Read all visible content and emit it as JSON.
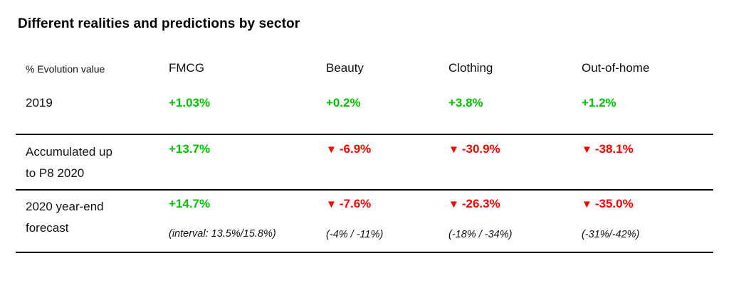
{
  "title": "Different realities and predictions by sector",
  "colors": {
    "positive": "#00C500",
    "negative": "#FF0000",
    "text": "#000000",
    "divider": "#000000"
  },
  "icons": {
    "down_marker": "down-triangle-icon"
  },
  "table": {
    "corner_label": "% Evolution value",
    "columns": [
      "FMCG",
      "Beauty",
      "Clothing",
      "Out-of-home"
    ],
    "rows": [
      {
        "label": "2019",
        "label_lines": [
          "2019"
        ],
        "values": [
          {
            "text": "+1.03%",
            "trend": "up"
          },
          {
            "text": "+0.2%",
            "trend": "up"
          },
          {
            "text": "+3.8%",
            "trend": "up"
          },
          {
            "text": "+1.2%",
            "trend": "up"
          }
        ]
      },
      {
        "label": "Accumulated up to P8 2020",
        "label_lines": [
          "Accumulated up",
          "to P8 2020"
        ],
        "values": [
          {
            "text": "+13.7%",
            "trend": "up"
          },
          {
            "text": "-6.9%",
            "trend": "down",
            "marker": "▼"
          },
          {
            "text": "-30.9%",
            "trend": "down",
            "marker": "▼"
          },
          {
            "text": "-38.1%",
            "trend": "down",
            "marker": "▼"
          }
        ]
      },
      {
        "label": "2020 year-end forecast",
        "label_lines": [
          "2020 year-end",
          "forecast"
        ],
        "values": [
          {
            "text": "+14.7%",
            "trend": "up",
            "interval": "(interval: 13.5%/15.8%)"
          },
          {
            "text": "-7.6%",
            "trend": "down",
            "marker": "▼",
            "interval": "(-4% / -11%)"
          },
          {
            "text": "-26.3%",
            "trend": "down",
            "marker": "▼",
            "interval": "(-18% / -34%)"
          },
          {
            "text": "-35.0%",
            "trend": "down",
            "marker": "▼",
            "interval": "(-31%/-42%)"
          }
        ]
      }
    ]
  },
  "chart_data": {
    "type": "table",
    "title": "Different realities and predictions by sector",
    "row_header": "% Evolution value",
    "columns": [
      "FMCG",
      "Beauty",
      "Clothing",
      "Out-of-home"
    ],
    "rows": [
      {
        "label": "2019",
        "values_pct": [
          1.03,
          0.2,
          3.8,
          1.2
        ],
        "values_text": [
          "+1.03%",
          "+0.2%",
          "+3.8%",
          "+1.2%"
        ]
      },
      {
        "label": "Accumulated up to P8 2020",
        "values_pct": [
          13.7,
          -6.9,
          -30.9,
          -38.1
        ],
        "values_text": [
          "+13.7%",
          "-6.9%",
          "-30.9%",
          "-38.1%"
        ]
      },
      {
        "label": "2020 year-end forecast",
        "values_pct": [
          14.7,
          -7.6,
          -26.3,
          -35.0
        ],
        "values_text": [
          "+14.7%",
          "-7.6%",
          "-26.3%",
          "-35.0%"
        ],
        "intervals": [
          "(interval: 13.5%/15.8%)",
          "(-4% / -11%)",
          "(-18% / -34%)",
          "(-31%/-42%)"
        ]
      }
    ],
    "legend": "green = growth, red triangle = decline",
    "layout": {
      "dividers": "horizontal rules above 'Accumulated up to P8 2020' row, above and below forecast row"
    }
  }
}
